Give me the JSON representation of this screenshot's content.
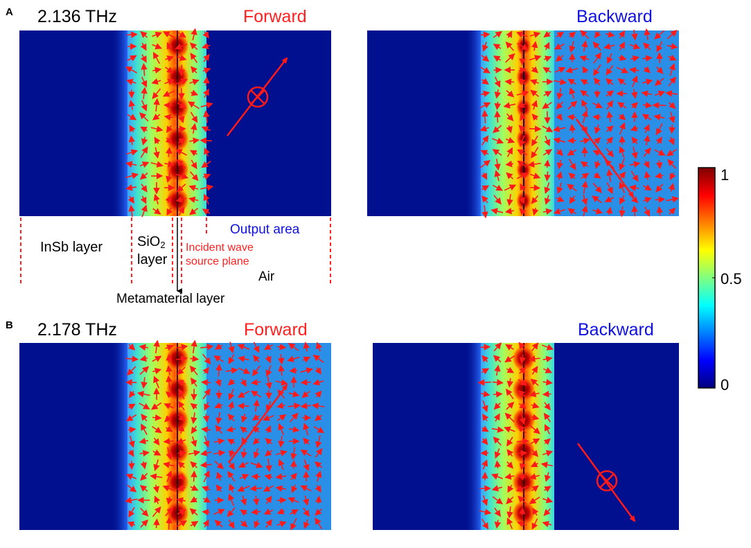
{
  "panel_a": {
    "letter": "A",
    "frequency": "2.136 THz",
    "forward_label": "Forward",
    "backward_label": "Backward"
  },
  "panel_b": {
    "letter": "B",
    "frequency": "2.178 THz",
    "forward_label": "Forward",
    "backward_label": "Backward"
  },
  "annotations": {
    "insb_layer": "InSb layer",
    "sio2_main": "SiO",
    "sio2_sub": "2",
    "sio2_layer_word": "layer",
    "incident_line1": "Incident wave",
    "incident_line2": "source plane",
    "output_area": "Output area",
    "air": "Air",
    "metamaterial_layer": "Metamaterial layer"
  },
  "colorbar": {
    "max_label": "1",
    "mid_label": "0.5",
    "min_label": "0",
    "stops": [
      "#00007f",
      "#0000ff",
      "#0080ff",
      "#00ffff",
      "#80ff80",
      "#ffff00",
      "#ff8000",
      "#ff0000",
      "#7f0000"
    ]
  },
  "colors": {
    "dark_blue": "#00108f",
    "light_blue": "#2a8fe6",
    "arrow_red": "#ff1a1a",
    "forward_text": "#ff2020",
    "backward_text": "#1010e0",
    "annotation_red": "#ff2020",
    "annotation_blue": "#1010e0"
  }
}
